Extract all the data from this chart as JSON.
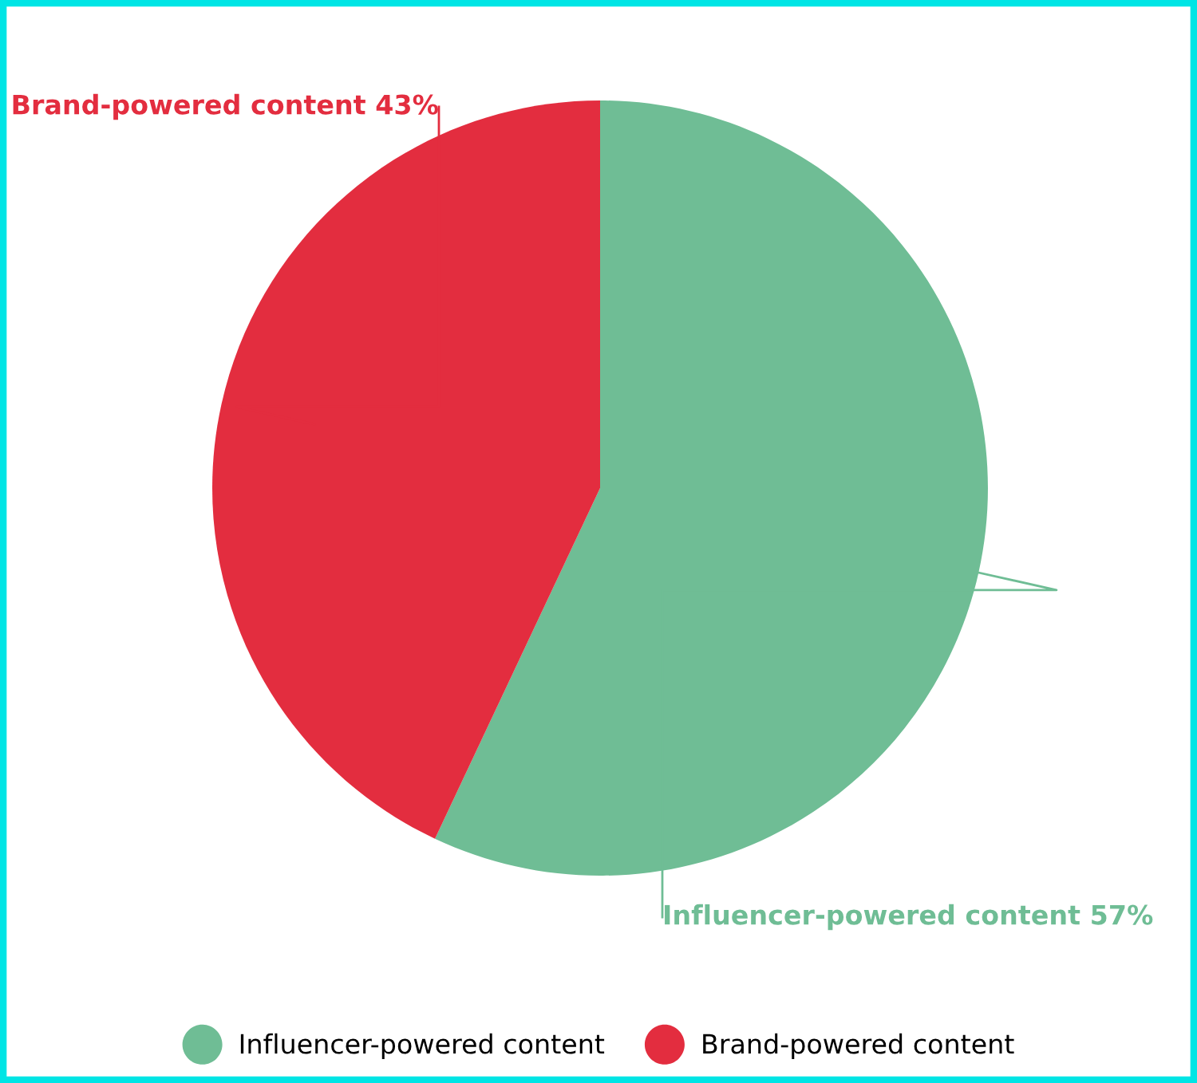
{
  "chart_data": {
    "type": "pie",
    "categories": [
      "Influencer-powered content",
      "Brand-powered content"
    ],
    "values": [
      57,
      43
    ],
    "value_labels": [
      "57%",
      "43%"
    ],
    "colors": [
      "#6fbd95",
      "#e32d3f"
    ],
    "legend": "bottom"
  }
}
